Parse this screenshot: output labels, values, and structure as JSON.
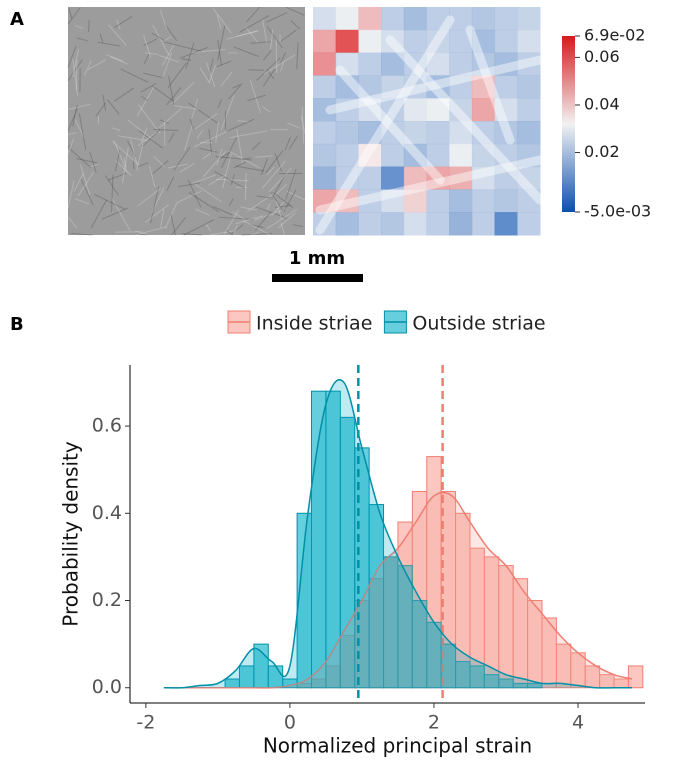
{
  "chart_data": [
    {
      "type": "heatmap",
      "panel_label": "A",
      "scale_bar": "1 mm",
      "values": [
        [
          0.025,
          0.03,
          0.045,
          0.02,
          0.015,
          0.02,
          0.02,
          0.018,
          0.02,
          0.022
        ],
        [
          0.05,
          0.069,
          0.03,
          0.025,
          0.02,
          0.022,
          0.02,
          0.015,
          0.02,
          0.025
        ],
        [
          0.055,
          0.025,
          0.02,
          0.015,
          0.02,
          0.025,
          0.02,
          0.018,
          0.015,
          0.02
        ],
        [
          0.02,
          0.015,
          0.018,
          0.022,
          0.02,
          0.015,
          0.02,
          0.045,
          0.02,
          0.018
        ],
        [
          0.015,
          0.02,
          0.025,
          0.02,
          0.028,
          0.03,
          0.022,
          0.05,
          0.025,
          0.02
        ],
        [
          0.02,
          0.018,
          0.015,
          0.02,
          0.022,
          0.02,
          0.025,
          0.02,
          0.018,
          0.015
        ],
        [
          0.018,
          0.02,
          0.035,
          0.02,
          0.015,
          0.02,
          0.03,
          0.022,
          0.02,
          0.018
        ],
        [
          0.012,
          0.02,
          0.02,
          0.002,
          0.045,
          0.05,
          0.048,
          0.025,
          0.02,
          0.022
        ],
        [
          0.05,
          0.045,
          0.02,
          0.025,
          0.04,
          0.02,
          0.015,
          0.02,
          0.018,
          0.02
        ],
        [
          0.02,
          0.015,
          0.02,
          0.018,
          0.025,
          0.02,
          0.012,
          0.02,
          0.0,
          0.02
        ]
      ],
      "colors": [
        "#0a4fb0",
        "#f2f2f2",
        "#d7191c"
      ],
      "clim": [
        -0.005,
        0.069
      ],
      "cticks": [
        {
          "value": 0.069,
          "label": "6.9e-02"
        },
        0.06,
        0.04,
        0.02,
        {
          "value": -0.005,
          "label": "-5.0e-03"
        }
      ]
    },
    {
      "type": "histogram",
      "panel_label": "B",
      "xlabel": "Normalized principal strain",
      "ylabel": "Probability density",
      "legend": "top",
      "bins": [
        -0.9,
        -0.7,
        -0.5,
        -0.3,
        -0.1,
        0.1,
        0.3,
        0.5,
        0.7,
        0.9,
        1.1,
        1.3,
        1.5,
        1.7,
        1.9,
        2.1,
        2.3,
        2.5,
        2.7,
        2.9,
        3.1,
        3.3,
        3.5,
        3.7,
        3.9,
        4.1,
        4.3,
        4.5,
        4.7,
        4.9
      ],
      "density_x": [
        -1.75,
        -1.5,
        -1.25,
        -1,
        -0.75,
        -0.5,
        -0.25,
        0,
        0.25,
        0.5,
        0.75,
        1,
        1.25,
        1.5,
        1.75,
        2,
        2.25,
        2.5,
        2.75,
        3,
        3.25,
        3.5,
        3.75,
        4,
        4.25,
        4.5,
        4.75
      ],
      "series": [
        {
          "name": "Inside striae",
          "color": "#f8a196",
          "edge": "#ef7f72",
          "mean": 2.12,
          "values": [
            0,
            0,
            0,
            0,
            0,
            0.01,
            0.02,
            0.05,
            0.12,
            0.2,
            0.25,
            0.3,
            0.38,
            0.45,
            0.53,
            0.45,
            0.4,
            0.32,
            0.3,
            0.28,
            0.25,
            0.2,
            0.16,
            0.1,
            0.08,
            0.05,
            0.03,
            0.02,
            0.05
          ],
          "density": [
            0,
            0,
            0,
            0,
            0,
            0,
            0,
            0.005,
            0.02,
            0.06,
            0.13,
            0.2,
            0.28,
            0.32,
            0.38,
            0.44,
            0.44,
            0.38,
            0.32,
            0.28,
            0.22,
            0.17,
            0.12,
            0.08,
            0.05,
            0.03,
            0.02
          ]
        },
        {
          "name": "Outside striae",
          "color": "#00adc6",
          "edge": "#0090a8",
          "mean": 0.95,
          "values": [
            0.02,
            0.05,
            0.1,
            0.05,
            0.02,
            0.4,
            0.68,
            0.68,
            0.62,
            0.55,
            0.42,
            0.3,
            0.28,
            0.2,
            0.15,
            0.1,
            0.06,
            0.05,
            0.03,
            0.02,
            0.01,
            0.01,
            0,
            0,
            0,
            0,
            0,
            0,
            0
          ],
          "density": [
            0,
            0,
            0.005,
            0.01,
            0.04,
            0.09,
            0.06,
            0.05,
            0.4,
            0.65,
            0.7,
            0.55,
            0.4,
            0.3,
            0.22,
            0.15,
            0.1,
            0.07,
            0.05,
            0.03,
            0.02,
            0.01,
            0.01,
            0.005,
            0,
            0,
            0
          ]
        }
      ],
      "xlim": [
        -2.22,
        4.93
      ],
      "xticks": [
        -2,
        0,
        2,
        4
      ],
      "ylim": [
        -0.035,
        0.74
      ],
      "yticks": [
        {
          "value": 0,
          "label": "0.0"
        },
        0.2,
        0.4,
        0.6
      ]
    }
  ]
}
